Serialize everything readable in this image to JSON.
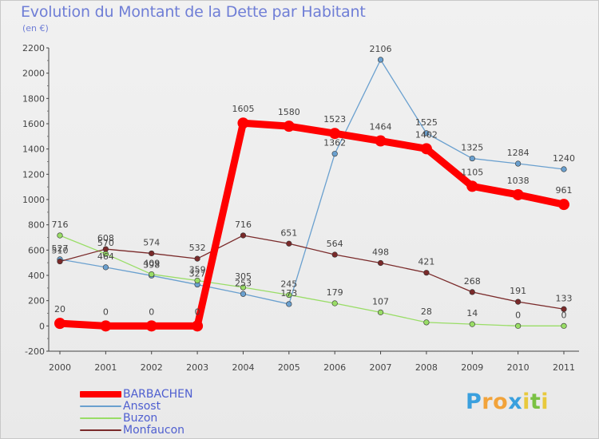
{
  "title": "Evolution du Montant de la Dette par Habitant",
  "unit": "(en €)",
  "logo": {
    "letters": [
      "P",
      "r",
      "o",
      "x",
      "i",
      "t",
      "i"
    ],
    "colors": [
      "#3aa0de",
      "#f2a33a",
      "#f2a33a",
      "#3aa0de",
      "#e8c93c",
      "#7ac143",
      "#e8c93c"
    ]
  },
  "chart_data": {
    "type": "line",
    "x": [
      "2000",
      "2001",
      "2002",
      "2003",
      "2004",
      "2005",
      "2006",
      "2007",
      "2008",
      "2009",
      "2010",
      "2011"
    ],
    "ylim": [
      -200,
      2200
    ],
    "yticks": [
      -200,
      0,
      200,
      400,
      600,
      800,
      1000,
      1200,
      1400,
      1600,
      1800,
      2000,
      2200
    ],
    "grid": false,
    "legend_position": "bottom-left",
    "series": [
      {
        "name": "BARBACHEN",
        "color": "#ff0000",
        "values": [
          20,
          0,
          0,
          0,
          1605,
          1580,
          1523,
          1464,
          1402,
          1105,
          1038,
          961
        ],
        "labels": [
          "20",
          "0",
          "0",
          "0",
          "1605",
          "1580",
          "1523",
          "1464",
          "1402",
          "1105",
          "1038",
          "961"
        ]
      },
      {
        "name": "Ansost",
        "color": "#6aa0cf",
        "values": [
          527,
          464,
          398,
          327,
          253,
          173,
          1362,
          2106,
          1525,
          1325,
          1284,
          1240
        ],
        "labels": [
          "527",
          "464",
          "398",
          "327",
          "253",
          "173",
          "1362",
          "2106",
          "1525",
          "1325",
          "1284",
          "1240"
        ]
      },
      {
        "name": "Buzon",
        "color": "#99dd66",
        "values": [
          716,
          570,
          409,
          359,
          305,
          245,
          179,
          107,
          28,
          14,
          0,
          0
        ],
        "labels": [
          "716",
          "570",
          "409",
          "359",
          "305",
          "245",
          "179",
          "107",
          "28",
          "14",
          "0",
          "0"
        ]
      },
      {
        "name": "Monfaucon",
        "color": "#7a2a2a",
        "values": [
          510,
          608,
          574,
          532,
          716,
          651,
          564,
          498,
          421,
          268,
          191,
          133
        ],
        "labels": [
          "510",
          "608",
          "574",
          "532",
          "716",
          "651",
          "564",
          "498",
          "421",
          "268",
          "191",
          "133"
        ]
      }
    ]
  }
}
